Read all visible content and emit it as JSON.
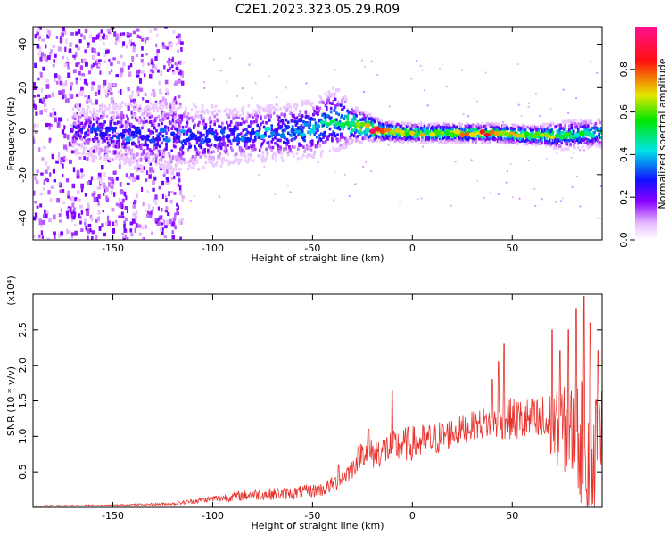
{
  "chart_data": [
    {
      "type": "heatmap",
      "title": "C2E1.2023.323.05.29.R09",
      "xlabel": "Height of straight line (km)",
      "ylabel": "Frequency (Hz)",
      "xlim": [
        -190,
        95
      ],
      "ylim": [
        -50,
        48
      ],
      "x_ticks": [
        "-150",
        "-100",
        "-50",
        "0",
        "50"
      ],
      "x_tick_values": [
        -150,
        -100,
        -50,
        0,
        50
      ],
      "y_ticks": [
        "-40",
        "-20",
        "0",
        "20",
        "40"
      ],
      "y_tick_values": [
        -40,
        -20,
        0,
        20,
        40
      ],
      "colorbar": {
        "label": "Normalized spectral amplitude",
        "range": [
          0,
          1
        ],
        "ticks": [
          "0.0",
          "0.2",
          "0.4",
          "0.6",
          "0.8"
        ],
        "tick_values": [
          0.0,
          0.2,
          0.4,
          0.6,
          0.8
        ],
        "colormap": "rainbow: white → violet → blue → cyan → green → yellow → red → magenta"
      },
      "ridge": [
        {
          "x": -165,
          "freq": 0,
          "spread": 5,
          "amp": 0.25
        },
        {
          "x": -150,
          "freq": -1,
          "spread": 6,
          "amp": 0.3
        },
        {
          "x": -130,
          "freq": -2,
          "spread": 7,
          "amp": 0.3
        },
        {
          "x": -110,
          "freq": -3,
          "spread": 7,
          "amp": 0.3
        },
        {
          "x": -90,
          "freq": -2,
          "spread": 6,
          "amp": 0.3
        },
        {
          "x": -70,
          "freq": -1,
          "spread": 6,
          "amp": 0.35
        },
        {
          "x": -50,
          "freq": 1,
          "spread": 6,
          "amp": 0.4
        },
        {
          "x": -38,
          "freq": 5,
          "spread": 7,
          "amp": 0.45
        },
        {
          "x": -30,
          "freq": 3,
          "spread": 4,
          "amp": 0.55
        },
        {
          "x": -15,
          "freq": 0,
          "spread": 2,
          "amp": 0.9
        },
        {
          "x": 0,
          "freq": -1,
          "spread": 2,
          "amp": 0.6
        },
        {
          "x": 20,
          "freq": -1,
          "spread": 2,
          "amp": 0.65
        },
        {
          "x": 40,
          "freq": -1,
          "spread": 2,
          "amp": 0.7
        },
        {
          "x": 60,
          "freq": -2,
          "spread": 2,
          "amp": 0.65
        },
        {
          "x": 75,
          "freq": -2,
          "spread": 3,
          "amp": 0.5
        },
        {
          "x": 93,
          "freq": -1,
          "spread": 3,
          "amp": 0.45
        }
      ]
    },
    {
      "type": "line",
      "xlabel": "Height of straight line (km)",
      "ylabel": "SNR (10 * v/v)",
      "scale_label": "(x10⁴)",
      "xlim": [
        -190,
        95
      ],
      "ylim": [
        0,
        3.0
      ],
      "x_ticks": [
        "-150",
        "-100",
        "-50",
        "0",
        "50"
      ],
      "x_tick_values": [
        -150,
        -100,
        -50,
        0,
        50
      ],
      "y_ticks": [
        "0.5",
        "1.0",
        "1.5",
        "2.0",
        "2.5"
      ],
      "y_tick_values": [
        0.5,
        1.0,
        1.5,
        2.0,
        2.5
      ],
      "series": [
        {
          "color": "#e8322c",
          "envelope_x": [
            -190,
            -150,
            -120,
            -100,
            -80,
            -60,
            -45,
            -38,
            -30,
            -25,
            -20,
            -10,
            0,
            10,
            20,
            30,
            40,
            50,
            60,
            70,
            75,
            80,
            85,
            90,
            95
          ],
          "envelope_y": [
            0.02,
            0.03,
            0.05,
            0.12,
            0.18,
            0.2,
            0.25,
            0.35,
            0.55,
            0.8,
            0.75,
            0.85,
            0.9,
            0.95,
            1.05,
            1.15,
            1.2,
            1.25,
            1.2,
            1.15,
            1.1,
            1.05,
            0.9,
            0.7,
            0.6
          ],
          "noise_y": [
            0.01,
            0.01,
            0.02,
            0.05,
            0.08,
            0.09,
            0.1,
            0.12,
            0.15,
            0.2,
            0.22,
            0.25,
            0.25,
            0.25,
            0.22,
            0.2,
            0.25,
            0.3,
            0.35,
            0.5,
            0.6,
            0.7,
            0.9,
            1.1,
            1.2
          ],
          "peaks": [
            {
              "x": -37,
              "y": 0.6
            },
            {
              "x": -22,
              "y": 1.1
            },
            {
              "x": -10,
              "y": 1.65
            },
            {
              "x": 40,
              "y": 1.8
            },
            {
              "x": 43,
              "y": 2.05
            },
            {
              "x": 46,
              "y": 2.3
            },
            {
              "x": 70,
              "y": 2.5
            },
            {
              "x": 74,
              "y": 2.2
            },
            {
              "x": 78,
              "y": 2.5
            },
            {
              "x": 82,
              "y": 2.8
            },
            {
              "x": 86,
              "y": 2.97
            },
            {
              "x": 89,
              "y": 2.6
            },
            {
              "x": 93,
              "y": 2.2
            }
          ]
        }
      ]
    }
  ]
}
